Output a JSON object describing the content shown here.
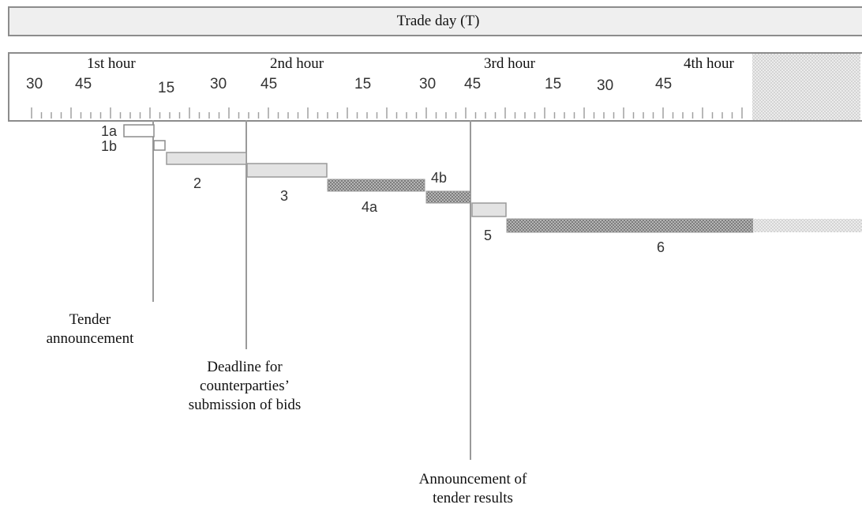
{
  "header": {
    "title": "Trade day (T)"
  },
  "timeline": {
    "hours": [
      "1st hour",
      "2nd hour",
      "3rd hour",
      "4th hour"
    ],
    "minute_ticks": [
      "30",
      "45",
      "15",
      "30",
      "45",
      "15",
      "30",
      "45",
      "15",
      "30",
      "45"
    ]
  },
  "steps": [
    {
      "id": "1a",
      "label": "1a",
      "style": "outline"
    },
    {
      "id": "1b",
      "label": "1b",
      "style": "outline"
    },
    {
      "id": "2",
      "label": "2",
      "style": "light"
    },
    {
      "id": "3",
      "label": "3",
      "style": "light"
    },
    {
      "id": "4a",
      "label": "4a",
      "style": "hatched"
    },
    {
      "id": "4b",
      "label": "4b",
      "style": "hatched"
    },
    {
      "id": "5",
      "label": "5",
      "style": "light"
    },
    {
      "id": "6",
      "label": "6",
      "style": "hatched"
    }
  ],
  "annotations": {
    "tender_announcement": [
      "Tender",
      "announcement"
    ],
    "bid_deadline": [
      "Deadline for",
      "counterparties’",
      "submission of bids"
    ],
    "results_announcement": [
      "Announcement of",
      "tender results"
    ]
  },
  "colors": {
    "border": "#8c8c8c",
    "header_fill": "#efefef",
    "light_bar": "#e3e3e3",
    "hatched_bar": "#9a9a9a",
    "shaded_region": "#d9d9d9"
  }
}
